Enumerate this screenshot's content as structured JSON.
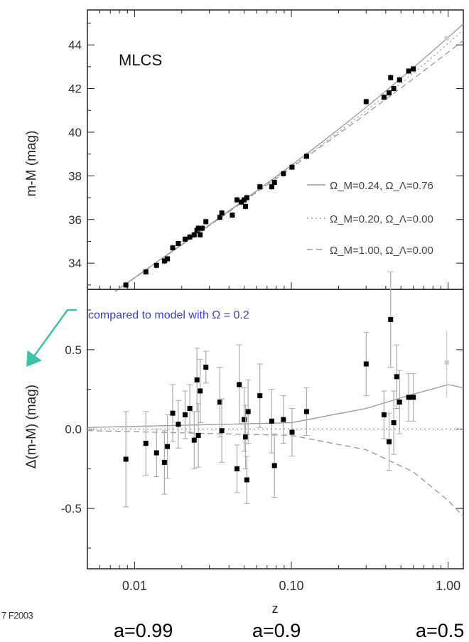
{
  "footer": {
    "stamp": "7 F2003",
    "scale_labels": [
      "a=0.99",
      "a=0.9",
      "a=0.5"
    ]
  },
  "colors": {
    "axis": "#222222",
    "points": "#000000",
    "errorbars": "#aaaaaa",
    "model_lines": "#999999",
    "annotation_text": "#3a3ad0",
    "annotation_arrow": "#3fc0a8"
  },
  "chart_data": [
    {
      "type": "scatter",
      "panel": "top",
      "label": "MLCS",
      "xscale": "log",
      "xlim": [
        0.005,
        1.25
      ],
      "ylim": [
        32.8,
        45.6
      ],
      "ylabel": "m-M (mag)",
      "yticks": [
        34,
        36,
        38,
        40,
        42,
        44
      ],
      "ytick_labels": [
        "34",
        "36",
        "38",
        "40",
        "42",
        "44"
      ],
      "grid": false,
      "legend_position": "right",
      "models": [
        {
          "name": "Ω_M=0.24, Ω_Λ=0.76",
          "style": "solid"
        },
        {
          "name": "Ω_M=0.20, Ω_Λ=0.00",
          "style": "dotted"
        },
        {
          "name": "Ω_M=1.00, Ω_Λ=0.00",
          "style": "dashed"
        }
      ],
      "points": [
        {
          "x": 0.0088,
          "y": 33.0
        },
        {
          "x": 0.0118,
          "y": 33.6
        },
        {
          "x": 0.0138,
          "y": 33.9
        },
        {
          "x": 0.0155,
          "y": 34.1
        },
        {
          "x": 0.0162,
          "y": 34.2
        },
        {
          "x": 0.0175,
          "y": 34.7
        },
        {
          "x": 0.019,
          "y": 34.9
        },
        {
          "x": 0.021,
          "y": 35.1
        },
        {
          "x": 0.0225,
          "y": 35.2
        },
        {
          "x": 0.024,
          "y": 35.3
        },
        {
          "x": 0.025,
          "y": 35.5
        },
        {
          "x": 0.0255,
          "y": 35.6
        },
        {
          "x": 0.0262,
          "y": 35.3
        },
        {
          "x": 0.027,
          "y": 35.6
        },
        {
          "x": 0.0285,
          "y": 35.9
        },
        {
          "x": 0.035,
          "y": 36.1
        },
        {
          "x": 0.036,
          "y": 36.3
        },
        {
          "x": 0.042,
          "y": 36.2
        },
        {
          "x": 0.045,
          "y": 36.9
        },
        {
          "x": 0.048,
          "y": 36.8
        },
        {
          "x": 0.05,
          "y": 36.9
        },
        {
          "x": 0.051,
          "y": 36.6
        },
        {
          "x": 0.052,
          "y": 37.0
        },
        {
          "x": 0.063,
          "y": 37.5
        },
        {
          "x": 0.075,
          "y": 37.5
        },
        {
          "x": 0.078,
          "y": 37.7
        },
        {
          "x": 0.089,
          "y": 38.1
        },
        {
          "x": 0.101,
          "y": 38.4
        },
        {
          "x": 0.125,
          "y": 38.9
        },
        {
          "x": 0.3,
          "y": 41.4
        },
        {
          "x": 0.39,
          "y": 41.6
        },
        {
          "x": 0.42,
          "y": 41.8
        },
        {
          "x": 0.43,
          "y": 42.5
        },
        {
          "x": 0.45,
          "y": 42.0
        },
        {
          "x": 0.49,
          "y": 42.4
        },
        {
          "x": 0.56,
          "y": 42.8
        },
        {
          "x": 0.6,
          "y": 42.9
        }
      ]
    },
    {
      "type": "scatter",
      "panel": "bottom",
      "xscale": "log",
      "xlim": [
        0.005,
        1.25
      ],
      "ylim": [
        -0.88,
        0.88
      ],
      "xlabel": "z",
      "ylabel": "Δ(m-M) (mag)",
      "xticks": [
        0.01,
        0.1,
        1.0
      ],
      "xtick_labels": [
        "0.01",
        "0.10",
        "1.00"
      ],
      "yticks": [
        -0.5,
        0.0,
        0.5
      ],
      "ytick_labels": [
        "-0.5",
        "0.0",
        "0.5"
      ],
      "annotation": "compared to model with Ω = 0.2",
      "models": [
        {
          "style": "solid",
          "x": [
            0.005,
            0.1,
            0.3,
            0.6,
            1.0,
            1.25
          ],
          "y": [
            0.01,
            0.04,
            0.13,
            0.22,
            0.28,
            0.26
          ]
        },
        {
          "style": "dotted",
          "x": [
            0.005,
            1.25
          ],
          "y": [
            0.0,
            0.0
          ]
        },
        {
          "style": "dashed",
          "x": [
            0.005,
            0.1,
            0.3,
            0.6,
            1.0,
            1.25
          ],
          "y": [
            -0.01,
            -0.04,
            -0.13,
            -0.27,
            -0.45,
            -0.55
          ]
        }
      ],
      "points": [
        {
          "x": 0.0088,
          "y": -0.19,
          "err": 0.3
        },
        {
          "x": 0.0118,
          "y": -0.09,
          "err": 0.2
        },
        {
          "x": 0.0138,
          "y": -0.15,
          "err": 0.15
        },
        {
          "x": 0.0155,
          "y": -0.21,
          "err": 0.2
        },
        {
          "x": 0.0162,
          "y": -0.11,
          "err": 0.2
        },
        {
          "x": 0.0175,
          "y": 0.1,
          "err": 0.18
        },
        {
          "x": 0.019,
          "y": 0.03,
          "err": 0.15
        },
        {
          "x": 0.021,
          "y": 0.09,
          "err": 0.15
        },
        {
          "x": 0.0225,
          "y": 0.13,
          "err": 0.15
        },
        {
          "x": 0.024,
          "y": -0.07,
          "err": 0.18
        },
        {
          "x": 0.025,
          "y": 0.31,
          "err": 0.2
        },
        {
          "x": 0.0255,
          "y": -0.04,
          "err": 0.2
        },
        {
          "x": 0.0262,
          "y": 0.24,
          "err": 0.2
        },
        {
          "x": 0.0285,
          "y": 0.39,
          "err": 0.1
        },
        {
          "x": 0.035,
          "y": 0.17,
          "err": 0.22
        },
        {
          "x": 0.036,
          "y": -0.01,
          "err": 0.2
        },
        {
          "x": 0.045,
          "y": -0.25,
          "err": 0.15
        },
        {
          "x": 0.0465,
          "y": 0.28,
          "err": 0.25
        },
        {
          "x": 0.05,
          "y": 0.06,
          "err": 0.2
        },
        {
          "x": 0.051,
          "y": -0.05,
          "err": 0.2
        },
        {
          "x": 0.052,
          "y": -0.32,
          "err": 0.15
        },
        {
          "x": 0.053,
          "y": 0.11,
          "err": 0.2
        },
        {
          "x": 0.063,
          "y": 0.21,
          "err": 0.2
        },
        {
          "x": 0.075,
          "y": 0.05,
          "err": 0.2
        },
        {
          "x": 0.078,
          "y": -0.23,
          "err": 0.2
        },
        {
          "x": 0.089,
          "y": 0.06,
          "err": 0.15
        },
        {
          "x": 0.101,
          "y": -0.02,
          "err": 0.15
        },
        {
          "x": 0.125,
          "y": 0.11,
          "err": 0.15
        },
        {
          "x": 0.3,
          "y": 0.41,
          "err": 0.2
        },
        {
          "x": 0.39,
          "y": 0.09,
          "err": 0.15
        },
        {
          "x": 0.42,
          "y": -0.08,
          "err": 0.18
        },
        {
          "x": 0.43,
          "y": 0.69,
          "err": 0.3
        },
        {
          "x": 0.45,
          "y": 0.04,
          "err": 0.2
        },
        {
          "x": 0.47,
          "y": 0.33,
          "err": 0.2
        },
        {
          "x": 0.49,
          "y": 0.17,
          "err": 0.2
        },
        {
          "x": 0.56,
          "y": 0.2,
          "err": 0.15
        },
        {
          "x": 0.6,
          "y": 0.2,
          "err": 0.15
        }
      ]
    }
  ]
}
